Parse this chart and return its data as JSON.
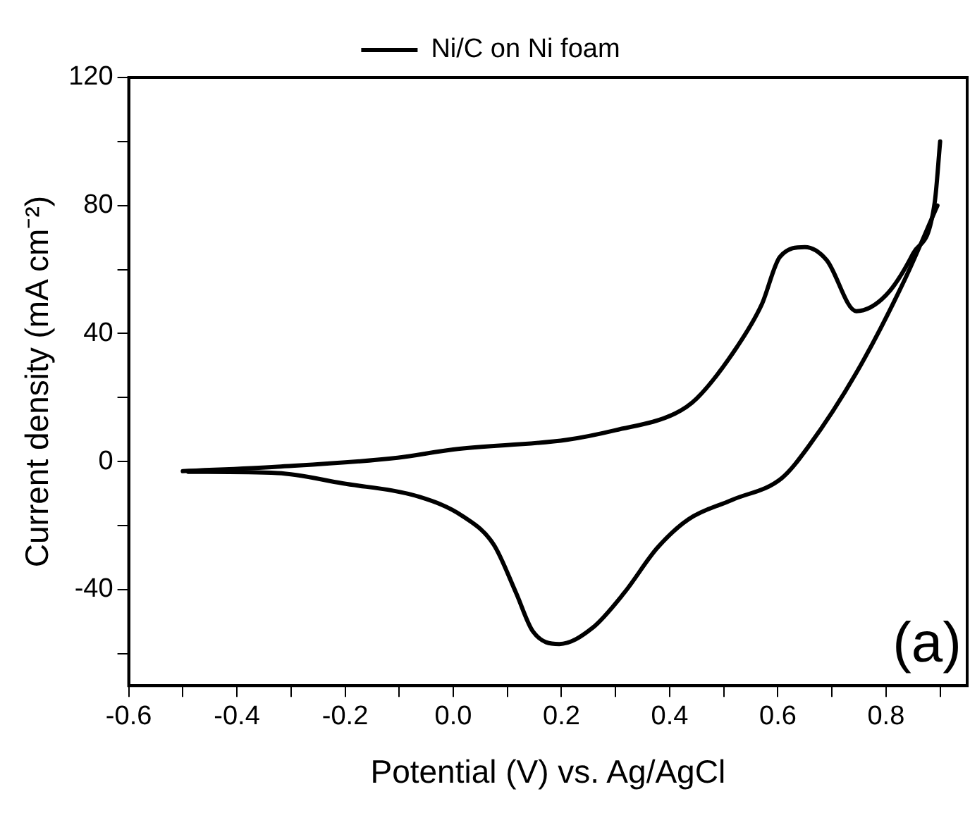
{
  "chart_data": {
    "type": "line",
    "xlabel": "Potential (V) vs. Ag/AgCl",
    "ylabel": "Current density (mA cm⁻²)",
    "annotations": [
      "(a)"
    ],
    "legend": "top",
    "grid": false,
    "marker": "none",
    "line_style": "solid",
    "xlim": [
      -0.6,
      0.95
    ],
    "ylim": [
      -70,
      120
    ],
    "xticks": [
      {
        "value": -0.6,
        "label": "-0.6"
      },
      {
        "value": -0.5,
        "label": null
      },
      {
        "value": -0.4,
        "label": "-0.4"
      },
      {
        "value": -0.3,
        "label": null
      },
      {
        "value": -0.2,
        "label": "-0.2"
      },
      {
        "value": -0.1,
        "label": null
      },
      {
        "value": 0,
        "label": "0.0"
      },
      {
        "value": 0.1,
        "label": null
      },
      {
        "value": 0.2,
        "label": "0.2"
      },
      {
        "value": 0.3,
        "label": null
      },
      {
        "value": 0.4,
        "label": "0.4"
      },
      {
        "value": 0.5,
        "label": null
      },
      {
        "value": 0.6,
        "label": "0.6"
      },
      {
        "value": 0.7,
        "label": null
      },
      {
        "value": 0.8,
        "label": "0.8"
      },
      {
        "value": 0.9,
        "label": null
      }
    ],
    "yticks": [
      {
        "value": -60,
        "label": null
      },
      -40,
      {
        "value": -20,
        "label": null
      },
      0,
      {
        "value": 20,
        "label": null
      },
      40,
      {
        "value": 60,
        "label": null
      },
      80,
      {
        "value": 100,
        "label": null
      },
      120
    ],
    "series": [
      {
        "name": "Ni/C on Ni foam",
        "color": "#000000",
        "x": [
          -0.5,
          -0.325,
          -0.103,
          0.0,
          0.21,
          0.3,
          0.41,
          0.45,
          0.524,
          0.57,
          0.604,
          0.65,
          0.69,
          0.745,
          0.8,
          0.85,
          0.89,
          0.9
        ],
        "values": [
          -3,
          -1.6,
          1.2,
          3.8,
          6.8,
          9.8,
          15,
          19.7,
          35.7,
          49,
          64,
          67,
          63,
          47,
          52,
          65,
          81,
          100
        ]
      },
      {
        "color": "#000000",
        "x": [
          0.895,
          0.835,
          0.745,
          0.657,
          0.607,
          0.515,
          0.435,
          0.377,
          0.316,
          0.257,
          0.196,
          0.147,
          0.116,
          0.075,
          0.017,
          -0.063,
          -0.205,
          -0.325,
          -0.49
        ],
        "values": [
          80,
          57,
          27.7,
          4.8,
          -5.2,
          -12,
          -18,
          -27,
          -41,
          -52,
          -57,
          -53,
          -41,
          -26,
          -17,
          -11,
          -6.8,
          -3.6,
          -3.2
        ]
      }
    ]
  }
}
